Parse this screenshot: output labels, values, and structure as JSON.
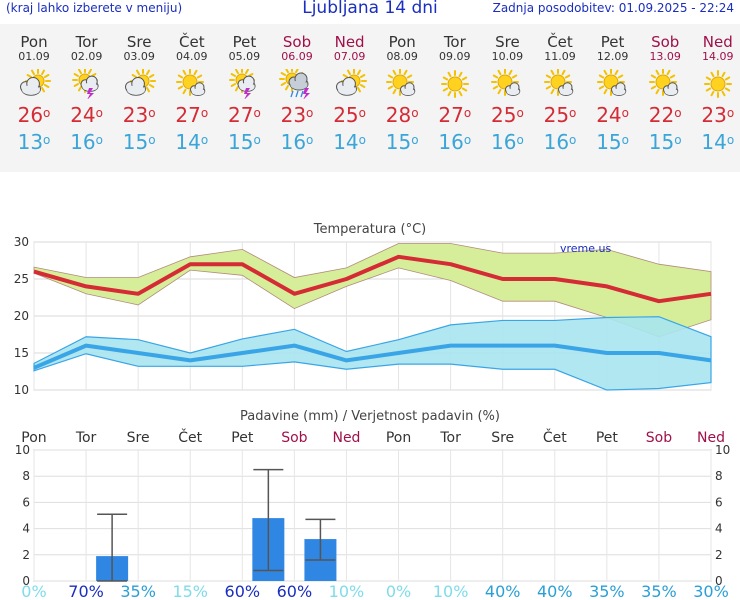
{
  "header": {
    "left_note": "(kraj lahko izberete v meniju)",
    "title": "Ljubljana 14 dni",
    "updated": "Zadnja posodobitev: 01.09.2025 - 22:24"
  },
  "days": [
    {
      "name": "Pon",
      "date": "01.09",
      "icon": "partly-cloudy-icon",
      "tmax": "26",
      "tmin": "13",
      "weekend": false
    },
    {
      "name": "Tor",
      "date": "02.09",
      "icon": "sun-cloud-thunder-icon",
      "tmax": "24",
      "tmin": "16",
      "weekend": false
    },
    {
      "name": "Sre",
      "date": "03.09",
      "icon": "partly-cloudy-icon",
      "tmax": "23",
      "tmin": "15",
      "weekend": false
    },
    {
      "name": "Čet",
      "date": "04.09",
      "icon": "sun-small-cloud-icon",
      "tmax": "27",
      "tmin": "14",
      "weekend": false
    },
    {
      "name": "Pet",
      "date": "05.09",
      "icon": "sun-cloud-thunder-icon",
      "tmax": "27",
      "tmin": "15",
      "weekend": false
    },
    {
      "name": "Sob",
      "date": "06.09",
      "icon": "sun-cloud-rain-thunder-icon",
      "tmax": "23",
      "tmin": "16",
      "weekend": true
    },
    {
      "name": "Ned",
      "date": "07.09",
      "icon": "partly-cloudy-icon",
      "tmax": "25",
      "tmin": "14",
      "weekend": true
    },
    {
      "name": "Pon",
      "date": "08.09",
      "icon": "sun-small-cloud-icon",
      "tmax": "28",
      "tmin": "15",
      "weekend": false
    },
    {
      "name": "Tor",
      "date": "09.09",
      "icon": "sun-icon",
      "tmax": "27",
      "tmin": "16",
      "weekend": false
    },
    {
      "name": "Sre",
      "date": "10.09",
      "icon": "sun-small-cloud-icon",
      "tmax": "25",
      "tmin": "16",
      "weekend": false
    },
    {
      "name": "Čet",
      "date": "11.09",
      "icon": "sun-small-cloud-icon",
      "tmax": "25",
      "tmin": "16",
      "weekend": false
    },
    {
      "name": "Pet",
      "date": "12.09",
      "icon": "sun-small-cloud-icon",
      "tmax": "24",
      "tmin": "15",
      "weekend": false
    },
    {
      "name": "Sob",
      "date": "13.09",
      "icon": "sun-small-cloud-icon",
      "tmax": "22",
      "tmin": "15",
      "weekend": true
    },
    {
      "name": "Ned",
      "date": "14.09",
      "icon": "sun-icon",
      "tmax": "23",
      "tmin": "14",
      "weekend": true
    }
  ],
  "chart_data": [
    {
      "type": "line",
      "title": "Temperatura (°C)",
      "watermark": "vreme.us",
      "ylim": [
        10,
        30
      ],
      "yticks": [
        10,
        15,
        20,
        25,
        30
      ],
      "grid": true,
      "x": [
        "Pon",
        "Tor",
        "Sre",
        "Čet",
        "Pet",
        "Sob",
        "Ned",
        "Pon",
        "Tor",
        "Sre",
        "Čet",
        "Pet",
        "Sob",
        "Ned"
      ],
      "series": [
        {
          "values": [
            26,
            24,
            23,
            27,
            27,
            23,
            25,
            28,
            27,
            25,
            25,
            24,
            22,
            23
          ],
          "band_low": [
            25.8,
            23,
            21.5,
            26.2,
            25.5,
            21,
            24,
            26.5,
            24.8,
            22,
            22,
            19.8,
            17.2,
            19.5
          ],
          "band_high": [
            26.6,
            25.2,
            25.2,
            28,
            29,
            25.2,
            26.5,
            29.8,
            29.8,
            28.5,
            28.5,
            29,
            27,
            26
          ]
        },
        {
          "values": [
            13,
            16,
            15,
            14,
            15,
            16,
            14,
            15,
            16,
            16,
            16,
            15,
            15,
            14
          ],
          "band_low": [
            12.6,
            14.9,
            13.2,
            13.2,
            13.2,
            13.8,
            12.8,
            13.5,
            13.5,
            12.8,
            12.8,
            10,
            10.2,
            11
          ],
          "band_high": [
            13.6,
            17.2,
            16.8,
            15,
            16.9,
            18.2,
            15.2,
            16.8,
            18.8,
            19.4,
            19.4,
            19.8,
            19.9,
            17.2
          ]
        }
      ],
      "colors": {
        "max": "#d42b35",
        "max_band": "#d6ee9a",
        "min": "#3aa5e6",
        "min_band": "#a8e4f0"
      }
    },
    {
      "type": "bar",
      "title": "Padavine (mm) / Verjetnost padavin (%)",
      "ylim": [
        0,
        10
      ],
      "yticks": [
        0,
        2,
        4,
        6,
        8,
        10
      ],
      "x": [
        "Pon",
        "Tor",
        "Sre",
        "Čet",
        "Pet",
        "Sob",
        "Ned",
        "Pon",
        "Tor",
        "Sre",
        "Čet",
        "Pet",
        "Sob",
        "Ned"
      ],
      "values": [
        0,
        1.9,
        0,
        0,
        4.8,
        3.2,
        0,
        0,
        0,
        0,
        0,
        0,
        0,
        0
      ],
      "err_low": [
        null,
        0,
        null,
        null,
        0.8,
        1.6,
        null,
        null,
        null,
        null,
        null,
        null,
        null,
        null
      ],
      "err_high": [
        null,
        5.1,
        null,
        null,
        8.5,
        4.7,
        null,
        null,
        null,
        null,
        null,
        null,
        null,
        null
      ],
      "probability": [
        "0%",
        "70%",
        "35%",
        "15%",
        "60%",
        "60%",
        "10%",
        "0%",
        "10%",
        "40%",
        "40%",
        "35%",
        "35%",
        "30%"
      ],
      "bar_color": "#2f86e3"
    }
  ]
}
